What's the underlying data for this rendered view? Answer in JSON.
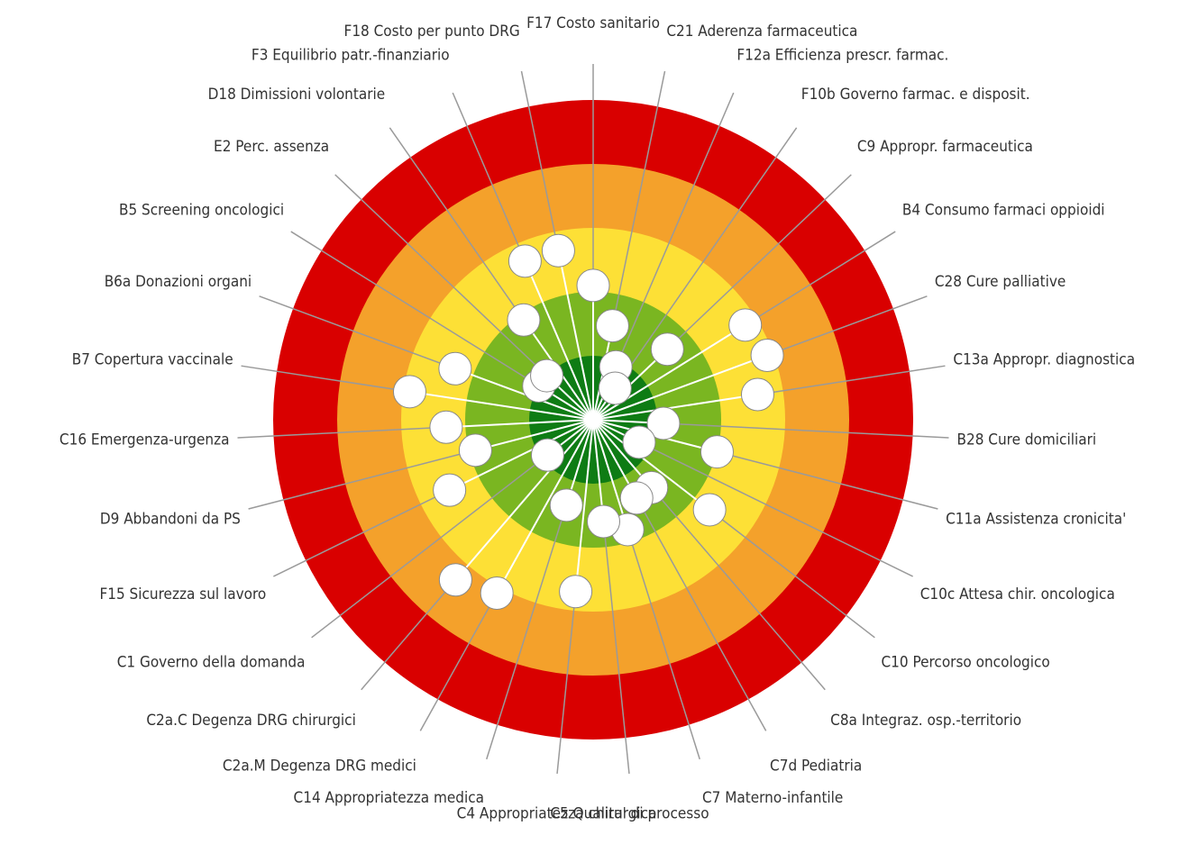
{
  "chart_data": {
    "type": "target",
    "categories": [
      "F17 Costo sanitario",
      "C21 Aderenza farmaceutica",
      "F12a Efficienza prescr. farmac.",
      "F10b Governo farmac. e disposit.",
      "C9 Appropr. farmaceutica",
      "B4 Consumo farmaci oppioidi",
      "C28 Cure palliative",
      "C13a Appropr. diagnostica",
      "B28 Cure domiciliari",
      "C11a Assistenza cronicita'",
      "C10c Attesa chir. oncologica",
      "C10 Percorso oncologico",
      "C8a Integraz. osp.-territorio",
      "C7d Pediatria",
      "C7 Materno-infantile",
      "C5 Qualita' di processo",
      "C4 Appropriatezza chirurgica",
      "C14 Appropriatezza medica",
      "C2a.M Degenza DRG medici",
      "C2a.C Degenza DRG chirurgici",
      "C1 Governo della domanda",
      "F15 Sicurezza sul lavoro",
      "D9 Abbandoni da PS",
      "C16 Emergenza-urgenza",
      "B7 Copertura vaccinale",
      "B6a Donazioni organi",
      "B5 Screening oncologici",
      "E2 Perc. assenza",
      "D18 Dimissioni volontarie",
      "F3 Equilibrio patr.-finanziario",
      "F18 Costo per punto DRG"
    ],
    "values": [
      2.9,
      3.5,
      4.1,
      4.4,
      3.4,
      2.2,
      2.1,
      2.4,
      3.9,
      3.0,
      4.2,
      2.7,
      3.6,
      3.6,
      3.2,
      3.4,
      2.3,
      3.6,
      1.9,
      1.7,
      4.1,
      2.5,
      3.1,
      2.7,
      2.1,
      2.7,
      4.0,
      4.0,
      3.1,
      2.3,
      2.3
    ],
    "rlim": [
      5,
      0
    ],
    "marker_color": "#ffffff",
    "bands": [
      {
        "from": 1,
        "to": 0,
        "color": "#d90000"
      },
      {
        "from": 2,
        "to": 1,
        "color": "#f4a12b"
      },
      {
        "from": 3,
        "to": 2,
        "color": "#fde036"
      },
      {
        "from": 4,
        "to": 3,
        "color": "#7ab621"
      },
      {
        "from": 5,
        "to": 4,
        "color": "#0e7c14"
      }
    ]
  }
}
